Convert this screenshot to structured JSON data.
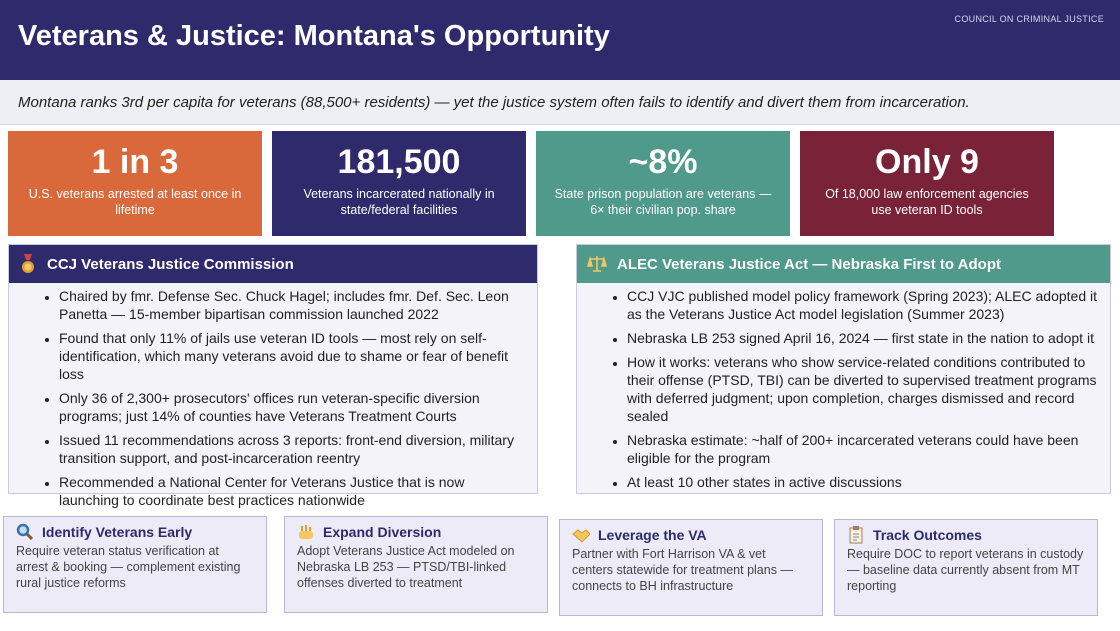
{
  "header": {
    "title": "Veterans & Justice: Montana's Opportunity",
    "org": "COUNCIL ON CRIMINAL JUSTICE"
  },
  "subtitle": "Montana ranks 3rd per capita for veterans (88,500+ residents) — yet the justice system often fails to identify and divert them from incarceration.",
  "stats": [
    {
      "value": "1 in 3",
      "label": "U.S. veterans arrested at least once in lifetime"
    },
    {
      "value": "181,500",
      "label": "Veterans incarcerated nationally in state/federal facilities"
    },
    {
      "value": "~8%",
      "label": "State prison population are veterans — 6× their civilian pop. share"
    },
    {
      "value": "Only 9",
      "label": "Of 18,000 law enforcement agencies use veteran ID tools"
    }
  ],
  "panels": [
    {
      "title": "CCJ Veterans Justice Commission",
      "items": [
        "Chaired by fmr. Defense Sec. Chuck Hagel; includes fmr. Def. Sec. Leon Panetta — 15-member bipartisan commission launched 2022",
        "Found that only 11% of jails use veteran ID tools — most rely on self-identification, which many veterans avoid due to shame or fear of benefit loss",
        "Only 36 of 2,300+ prosecutors' offices run veteran-specific diversion programs; just 14% of counties have Veterans Treatment Courts",
        "Issued 11 recommendations across 3 reports: front-end diversion, military transition support, and post-incarceration reentry",
        "Recommended a National Center for Veterans Justice that is now launching to coordinate best practices nationwide"
      ]
    },
    {
      "title": "ALEC Veterans Justice Act — Nebraska First to Adopt",
      "items": [
        "CCJ VJC published model policy framework (Spring 2023); ALEC adopted it as the Veterans Justice Act model legislation (Summer 2023)",
        "Nebraska LB 253 signed April 16, 2024 — first state in the nation to adopt it",
        "How it works: veterans who show service-related conditions contributed to their offense (PTSD, TBI) can be diverted to supervised treatment programs with deferred judgment; upon completion, charges dismissed and record sealed",
        "Nebraska estimate: ~half of 200+ incarcerated veterans could have been eligible for the program",
        "At least 10 other states in active discussions"
      ]
    }
  ],
  "cards": [
    {
      "title": "Identify Veterans Early",
      "text": "Require veteran status verification at arrest & booking — complement existing rural justice reforms"
    },
    {
      "title": "Expand Diversion",
      "text": "Adopt Veterans Justice Act modeled on Nebraska LB 253 — PTSD/TBI-linked offenses diverted to treatment"
    },
    {
      "title": "Leverage the VA",
      "text": "Partner with Fort Harrison VA & vet centers statewide for treatment plans — connects to BH infrastructure"
    },
    {
      "title": "Track Outcomes",
      "text": "Require DOC to report veterans in custody — baseline data currently absent from MT reporting"
    }
  ]
}
